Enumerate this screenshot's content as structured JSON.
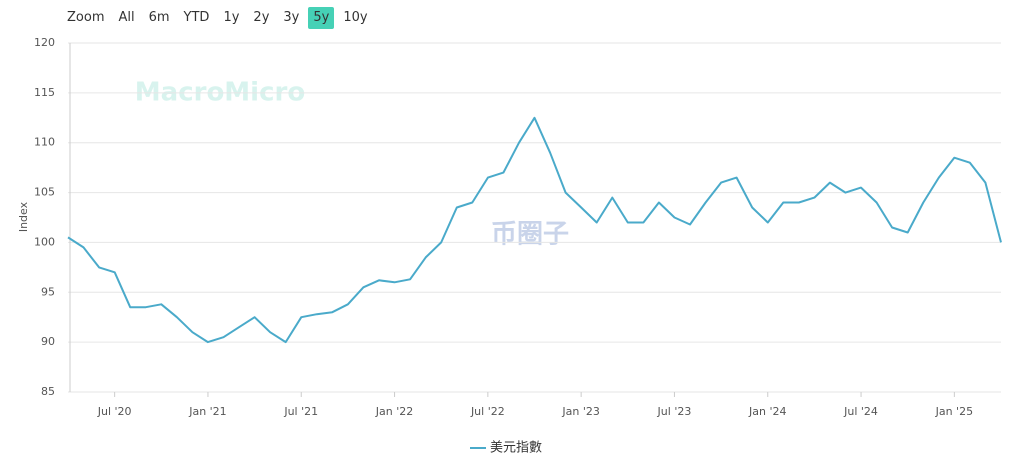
{
  "range_selector": {
    "label": "Zoom",
    "buttons": [
      "All",
      "6m",
      "YTD",
      "1y",
      "2y",
      "3y",
      "5y",
      "10y"
    ],
    "active": 6,
    "active_color": "#46d1b6"
  },
  "watermarks": [
    "MacroMicro",
    "币圈子"
  ],
  "chart_data": {
    "type": "line",
    "y_label": "Index",
    "grid": true,
    "legend": "bottom",
    "x": [
      "2020-04",
      "2020-05",
      "2020-06",
      "2020-07",
      "2020-08",
      "2020-09",
      "2020-10",
      "2020-11",
      "2020-12",
      "2021-01",
      "2021-02",
      "2021-03",
      "2021-04",
      "2021-05",
      "2021-06",
      "2021-07",
      "2021-08",
      "2021-09",
      "2021-10",
      "2021-11",
      "2021-12",
      "2022-01",
      "2022-02",
      "2022-03",
      "2022-04",
      "2022-05",
      "2022-06",
      "2022-07",
      "2022-08",
      "2022-09",
      "2022-10",
      "2022-11",
      "2022-12",
      "2023-01",
      "2023-02",
      "2023-03",
      "2023-04",
      "2023-05",
      "2023-06",
      "2023-07",
      "2023-08",
      "2023-09",
      "2023-10",
      "2023-11",
      "2023-12",
      "2024-01",
      "2024-02",
      "2024-03",
      "2024-04",
      "2024-05",
      "2024-06",
      "2024-07",
      "2024-08",
      "2024-09",
      "2024-10",
      "2024-11",
      "2024-12",
      "2025-01",
      "2025-02",
      "2025-03",
      "2025-04"
    ],
    "series": [
      {
        "name": "美元指數",
        "color": "#4aaaca",
        "values": [
          100.5,
          99.5,
          97.5,
          97,
          93.5,
          93.5,
          93.8,
          92.5,
          91,
          90,
          90.5,
          91.5,
          92.5,
          91,
          90,
          92.5,
          92.8,
          93,
          93.8,
          95.5,
          96.2,
          96,
          96.3,
          98.5,
          100,
          103.5,
          104,
          106.5,
          107,
          110,
          112.5,
          109,
          105,
          103.5,
          102,
          104.5,
          102,
          102,
          104,
          102.5,
          101.8,
          104,
          106,
          106.5,
          103.5,
          102,
          104,
          104,
          104.5,
          106,
          105,
          105.5,
          104,
          101.5,
          101,
          104,
          106.5,
          108.5,
          108,
          106,
          100
        ]
      }
    ],
    "xlim": [
      "2020-04",
      "2025-04"
    ],
    "xticks": [
      {
        "value": "2020-07",
        "label": "Jul '20"
      },
      {
        "value": "2021-01",
        "label": "Jan '21"
      },
      {
        "value": "2021-07",
        "label": "Jul '21"
      },
      {
        "value": "2022-01",
        "label": "Jan '22"
      },
      {
        "value": "2022-07",
        "label": "Jul '22"
      },
      {
        "value": "2023-01",
        "label": "Jan '23"
      },
      {
        "value": "2023-07",
        "label": "Jul '23"
      },
      {
        "value": "2024-01",
        "label": "Jan '24"
      },
      {
        "value": "2024-07",
        "label": "Jul '24"
      },
      {
        "value": "2025-01",
        "label": "Jan '25"
      }
    ],
    "ylim": [
      85,
      120
    ],
    "yticks": [
      85,
      90,
      95,
      100,
      105,
      110,
      115,
      120
    ]
  }
}
